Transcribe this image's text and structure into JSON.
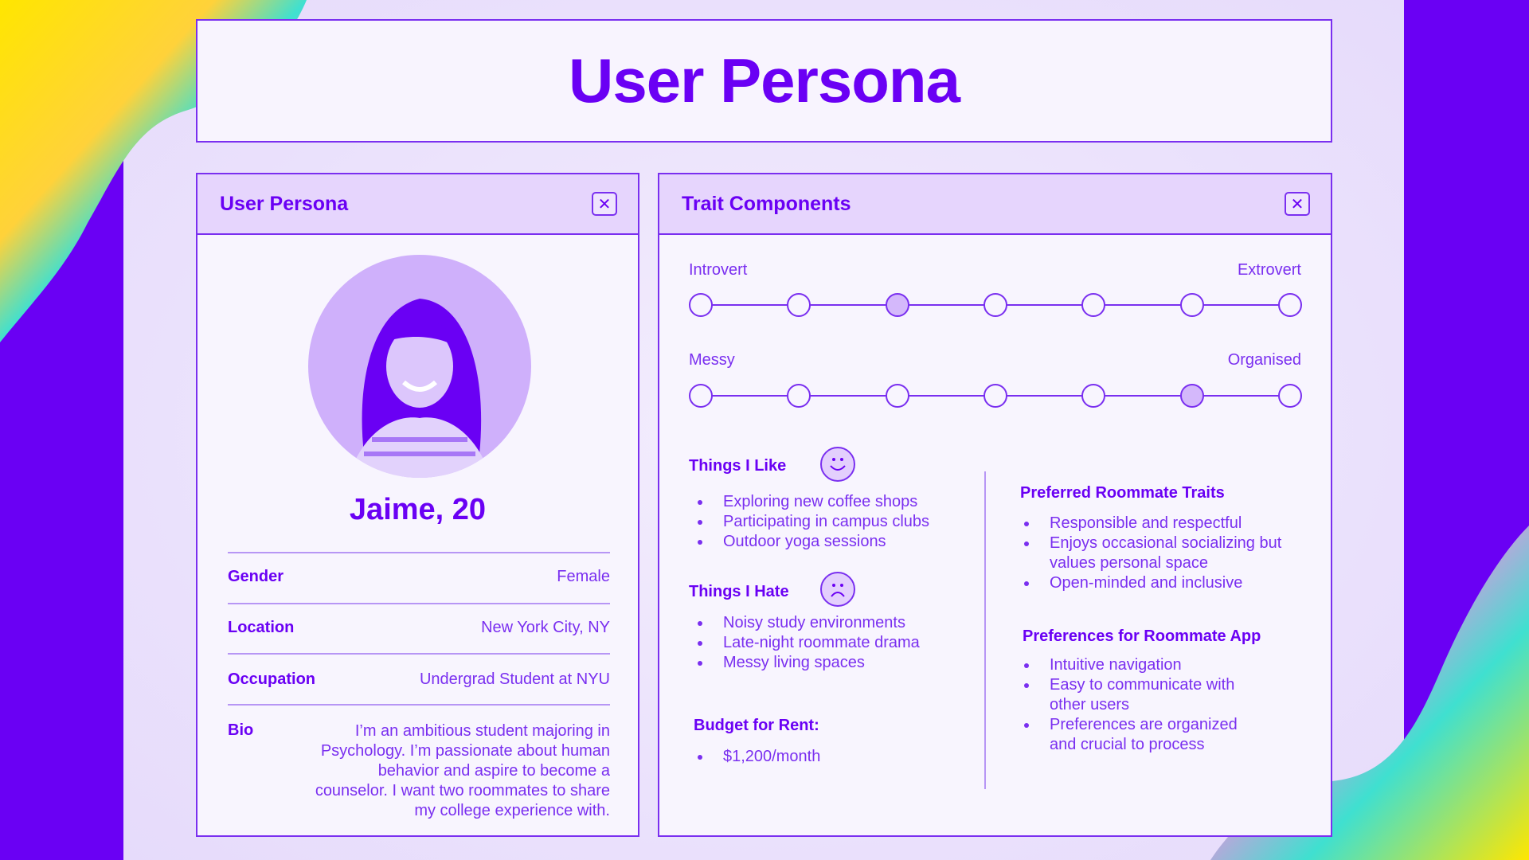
{
  "title": "User Persona",
  "colors": {
    "accent": "#6a00f4",
    "text": "#7a2ff0",
    "panel_header": "#e6d5fd",
    "selected_dot": "#d4b8fb"
  },
  "persona_panel": {
    "header": "User Persona",
    "close_icon": "close-icon",
    "name": "Jaime, 20",
    "fields": [
      {
        "label": "Gender",
        "value": "Female"
      },
      {
        "label": "Location",
        "value": "New York City, NY"
      },
      {
        "label": "Occupation",
        "value": "Undergrad Student at NYU"
      }
    ],
    "bio_label": "Bio",
    "bio": "I’m an ambitious student majoring in Psychology. I’m passionate about human behavior and aspire to become a counselor. I want two roommates to share my college experience with."
  },
  "traits_panel": {
    "header": "Trait Components",
    "close_icon": "close-icon",
    "scales": [
      {
        "left": "Introvert",
        "right": "Extrovert",
        "steps": 7,
        "selected": 3
      },
      {
        "left": "Messy",
        "right": "Organised",
        "steps": 7,
        "selected": 6
      }
    ],
    "likes": {
      "title": "Things I Like",
      "icon": "smiley-face-icon",
      "items": [
        "Exploring new coffee shops",
        "Participating in campus clubs",
        "Outdoor yoga sessions"
      ]
    },
    "hates": {
      "title": "Things I Hate",
      "icon": "sad-face-icon",
      "items": [
        "Noisy study environments",
        "Late-night roommate drama",
        "Messy living spaces"
      ]
    },
    "budget": {
      "title": "Budget for Rent:",
      "items": [
        "$1,200/month"
      ]
    },
    "roommate_traits": {
      "title": "Preferred Roommate Traits",
      "items": [
        "Responsible and respectful",
        "Enjoys occasional socializing but values personal space",
        "Open-minded and inclusive"
      ]
    },
    "app_prefs": {
      "title": "Preferences for Roommate App",
      "items": [
        "Intuitive navigation",
        "Easy to communicate with other users",
        "Preferences are organized and crucial to process"
      ]
    }
  }
}
